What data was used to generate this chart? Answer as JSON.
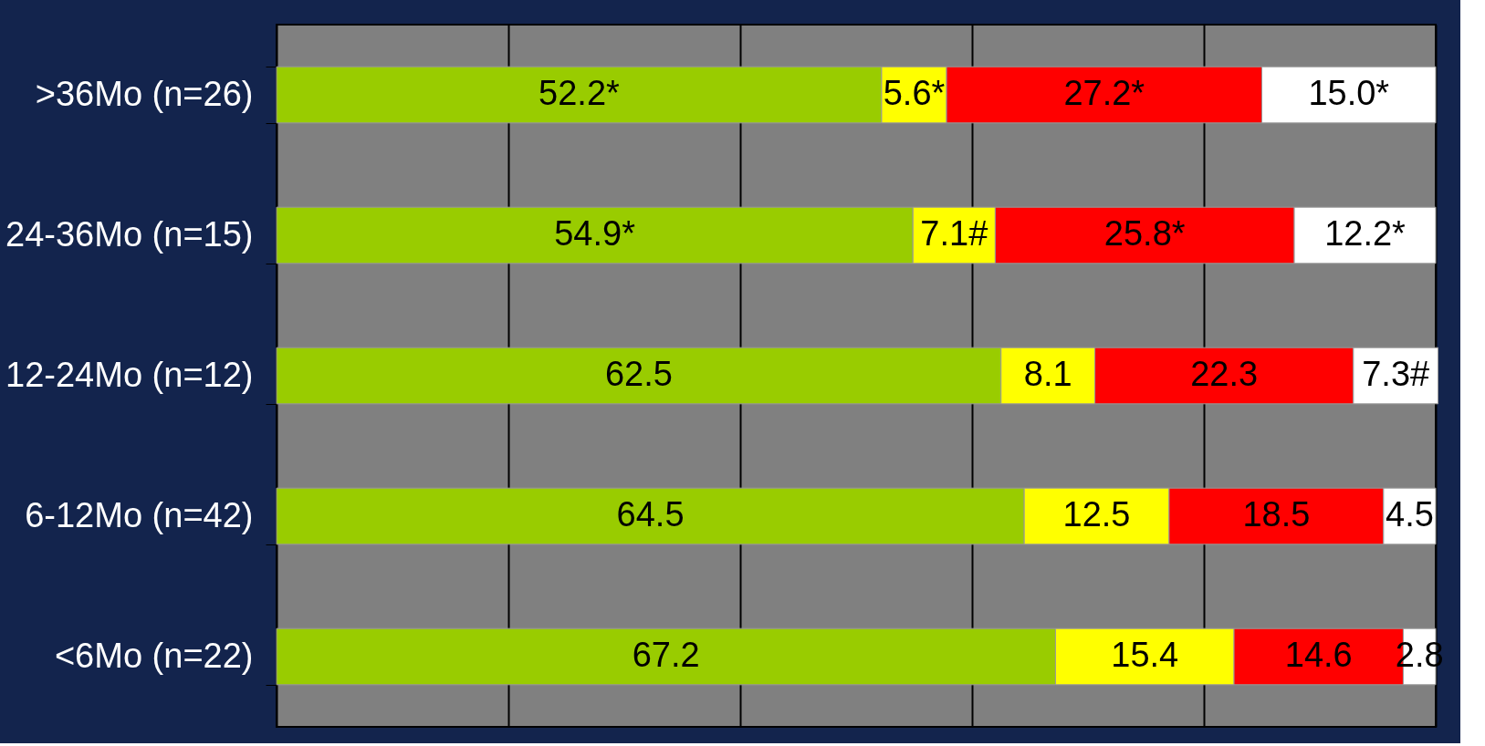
{
  "chart_data": {
    "type": "bar",
    "orientation": "horizontal",
    "stacked": true,
    "categories": [
      ">36Mo (n=26)",
      "24-36Mo (n=15)",
      "12-24Mo (n=12)",
      "6-12Mo (n=42)",
      "<6Mo (n=22)"
    ],
    "series": [
      {
        "color": "#99cc00",
        "values": [
          52.2,
          54.9,
          62.5,
          64.5,
          67.2
        ],
        "value_labels": [
          "52.2*",
          "54.9*",
          "62.5",
          "64.5",
          "67.2"
        ]
      },
      {
        "color": "#ffff00",
        "values": [
          5.6,
          7.1,
          8.1,
          12.5,
          15.4
        ],
        "value_labels": [
          "5.6*",
          "7.1#",
          "8.1",
          "12.5",
          "15.4"
        ]
      },
      {
        "color": "#ff0000",
        "values": [
          27.2,
          25.8,
          22.3,
          18.5,
          14.6
        ],
        "value_labels": [
          "27.2*",
          "25.8*",
          "22.3",
          "18.5",
          "14.6"
        ]
      },
      {
        "color": "#ffffff",
        "values": [
          15.0,
          12.2,
          7.3,
          4.5,
          2.8
        ],
        "value_labels": [
          "15.0*",
          "12.2*",
          "7.3#",
          "4.5",
          "2.8"
        ]
      }
    ],
    "xlim": [
      0,
      100
    ],
    "xticks": [
      {
        "value": 0,
        "label": null
      },
      {
        "value": 20,
        "label": null
      },
      {
        "value": 40,
        "label": null
      },
      {
        "value": 60,
        "label": null
      },
      {
        "value": 80,
        "label": null
      },
      {
        "value": 100,
        "label": null
      }
    ],
    "grid": "x",
    "tick_labels": "y"
  }
}
